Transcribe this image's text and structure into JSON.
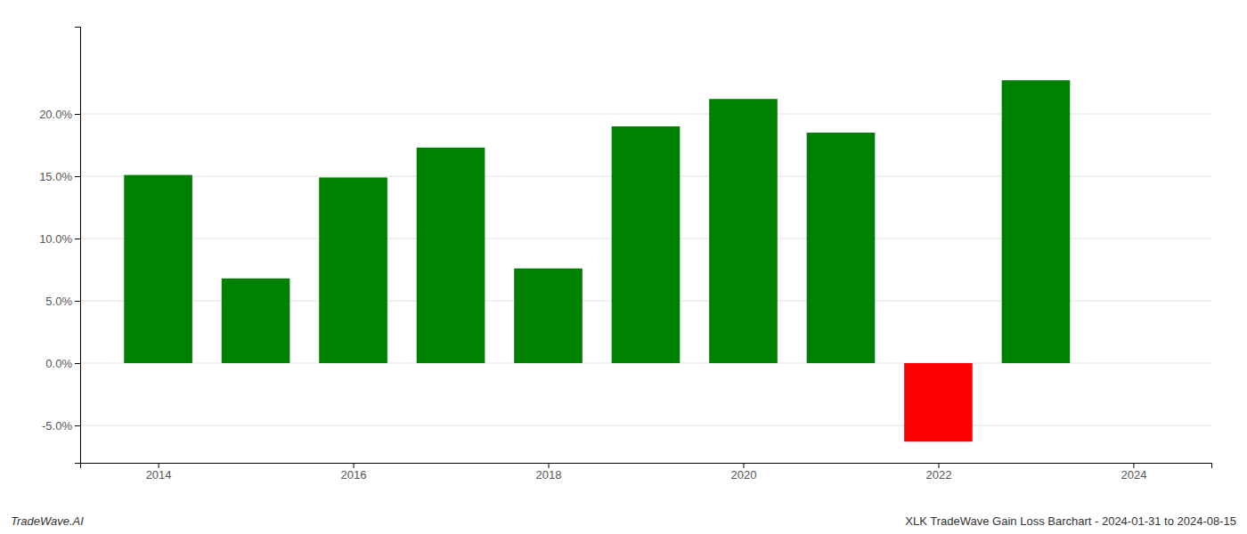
{
  "chart_data": {
    "type": "bar",
    "title": "XLK TradeWave Gain Loss Barchart - 2024-01-31 to 2024-08-15",
    "annotations": [
      "TradeWave.AI"
    ],
    "x": [
      2014,
      2015,
      2016,
      2017,
      2018,
      2019,
      2020,
      2021,
      2022,
      2023
    ],
    "values": [
      0.151,
      0.068,
      0.149,
      0.173,
      0.076,
      0.19,
      0.212,
      0.185,
      -0.063,
      0.227
    ],
    "colors": [
      "#008000",
      "#008000",
      "#008000",
      "#008000",
      "#008000",
      "#008000",
      "#008000",
      "#008000",
      "#ff0000",
      "#008000"
    ],
    "xlim": [
      2013.2,
      2024.8
    ],
    "xticks": [
      2014,
      2016,
      2018,
      2020,
      2022,
      2024
    ],
    "ylim": [
      -0.08,
      0.27
    ],
    "yticks": [
      {
        "value": -0.05,
        "label": "-5.0%"
      },
      {
        "value": 0.0,
        "label": "0.0%"
      },
      {
        "value": 0.05,
        "label": "5.0%"
      },
      {
        "value": 0.1,
        "label": "10.0%"
      },
      {
        "value": 0.15,
        "label": "15.0%"
      },
      {
        "value": 0.2,
        "label": "20.0%"
      }
    ],
    "grid": true
  }
}
